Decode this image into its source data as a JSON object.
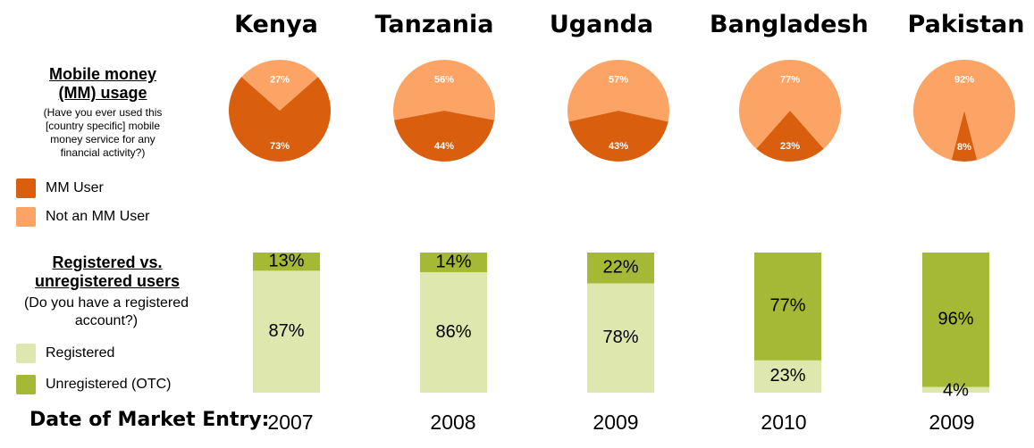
{
  "countries": [
    "Kenya",
    "Tanzania",
    "Uganda",
    "Bangladesh",
    "Pakistan"
  ],
  "usage_section": {
    "title": "Mobile money\n(MM) usage",
    "subtitle": "(Have you ever used this\n[country specific] mobile\nmoney service for any\nfinancial activity?)"
  },
  "registered_section": {
    "title": "Registered vs.\nunregistered users",
    "subtitle": "(Do you have a registered\naccount?)"
  },
  "legend_usage": [
    {
      "label": "MM User",
      "color": "#d95f0e"
    },
    {
      "label": "Not an MM User",
      "color": "#fca465"
    }
  ],
  "legend_registered": [
    {
      "label": "Registered",
      "color": "#dde7ae"
    },
    {
      "label": "Unregistered (OTC)",
      "color": "#a5b936"
    }
  ],
  "date_label": "Date of Market Entry:",
  "years": [
    "2007",
    "2008",
    "2009",
    "2010",
    "2009"
  ],
  "chart_data": [
    {
      "type": "pie",
      "categories": [
        "Kenya",
        "Tanzania",
        "Uganda",
        "Bangladesh",
        "Pakistan"
      ],
      "series": [
        {
          "name": "MM User",
          "values": [
            73,
            44,
            43,
            23,
            8
          ],
          "color": "#d95f0e"
        },
        {
          "name": "Not an MM User",
          "values": [
            27,
            56,
            57,
            77,
            92
          ],
          "color": "#fca465"
        }
      ]
    },
    {
      "type": "bar",
      "stacked": true,
      "percent": true,
      "categories": [
        "Kenya",
        "Tanzania",
        "Uganda",
        "Bangladesh",
        "Pakistan"
      ],
      "series": [
        {
          "name": "Registered",
          "values": [
            87,
            86,
            78,
            23,
            4
          ],
          "color": "#dde7ae"
        },
        {
          "name": "Unregistered (OTC)",
          "values": [
            13,
            14,
            22,
            77,
            96
          ],
          "color": "#a5b936"
        }
      ]
    }
  ]
}
